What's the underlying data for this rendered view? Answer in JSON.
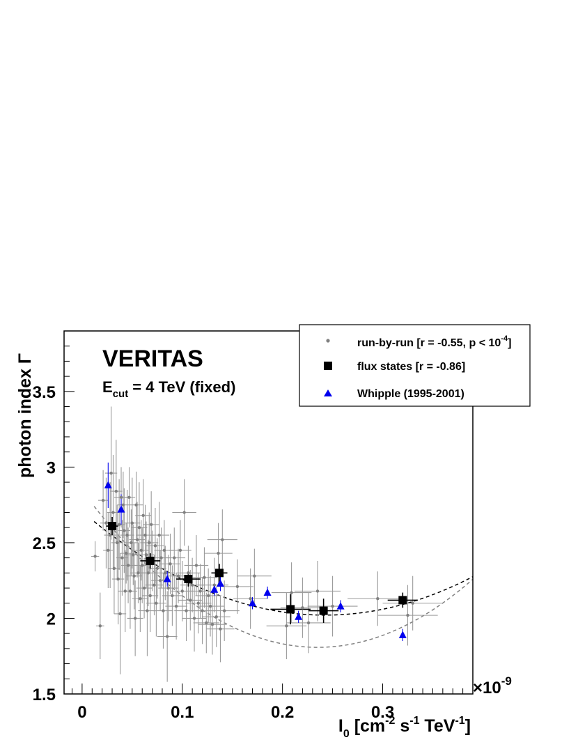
{
  "chart_data": {
    "type": "scatter",
    "title": "",
    "xlabel": {
      "main": "I",
      "sub": "0",
      "rest1": " [cm",
      "sup1": "-2",
      "rest2": " s",
      "sup2": "-1",
      "rest3": " TeV",
      "sup3": "-1",
      "rest4": "]"
    },
    "ylabel": "photon index  Γ",
    "x_multiplier": {
      "prefix": "×10",
      "exp": "-9"
    },
    "xlim": [
      -0.018,
      0.39
    ],
    "ylim": [
      1.5,
      3.9
    ],
    "x_ticks": [
      {
        "v": 0,
        "label": "0"
      },
      {
        "v": 0.1,
        "label": "0.1"
      },
      {
        "v": 0.2,
        "label": "0.2"
      },
      {
        "v": 0.3,
        "label": "0.3"
      }
    ],
    "y_ticks": [
      {
        "v": 1.5,
        "label": "1.5"
      },
      {
        "v": 2,
        "label": "2"
      },
      {
        "v": 2.5,
        "label": "2.5"
      },
      {
        "v": 3,
        "label": "3"
      },
      {
        "v": 3.5,
        "label": "3.5"
      }
    ],
    "annotations": {
      "experiment": "VERITAS",
      "ecut": {
        "main": "E",
        "sub": "cut",
        "rest": " = 4 TeV (fixed)"
      }
    },
    "legend": {
      "position": "top-right",
      "entries": [
        {
          "label": "run-by-run [r = -0.55, p < 10",
          "sup": "-4",
          "tail": "]",
          "marker": "dot",
          "color": "#808080"
        },
        {
          "label": "flux states [r = -0.86]",
          "marker": "square",
          "color": "#000000"
        },
        {
          "label": "Whipple (1995-2001)",
          "marker": "triangle",
          "color": "#0000ee"
        }
      ]
    },
    "series": [
      {
        "name": "run-by-run [r = -0.55, p < 10^-4]",
        "color": "#808080",
        "points": [
          [
            0.013,
            2.41,
            0.004,
            0.1
          ],
          [
            0.018,
            1.95,
            0.004,
            0.22
          ],
          [
            0.021,
            2.78,
            0.005,
            0.2
          ],
          [
            0.024,
            2.63,
            0.006,
            0.3
          ],
          [
            0.026,
            2.45,
            0.005,
            0.25
          ],
          [
            0.028,
            2.55,
            0.006,
            0.35
          ],
          [
            0.029,
            2.96,
            0.006,
            0.44
          ],
          [
            0.031,
            2.7,
            0.006,
            0.38
          ],
          [
            0.032,
            2.33,
            0.006,
            0.3
          ],
          [
            0.034,
            2.84,
            0.006,
            0.34
          ],
          [
            0.035,
            2.5,
            0.006,
            0.25
          ],
          [
            0.036,
            2.26,
            0.006,
            0.3
          ],
          [
            0.037,
            2.62,
            0.006,
            0.3
          ],
          [
            0.038,
            2.03,
            0.006,
            0.4
          ],
          [
            0.039,
            2.8,
            0.007,
            0.2
          ],
          [
            0.04,
            2.4,
            0.006,
            0.25
          ],
          [
            0.041,
            2.75,
            0.006,
            0.22
          ],
          [
            0.042,
            2.58,
            0.006,
            0.28
          ],
          [
            0.043,
            2.18,
            0.007,
            0.27
          ],
          [
            0.044,
            2.43,
            0.006,
            0.2
          ],
          [
            0.045,
            2.55,
            0.007,
            0.3
          ],
          [
            0.046,
            2.35,
            0.007,
            0.25
          ],
          [
            0.047,
            2.8,
            0.006,
            0.2
          ],
          [
            0.048,
            2.18,
            0.007,
            0.25
          ],
          [
            0.049,
            2.5,
            0.007,
            0.22
          ],
          [
            0.05,
            2.63,
            0.008,
            0.3
          ],
          [
            0.051,
            2.42,
            0.007,
            0.2
          ],
          [
            0.052,
            2.28,
            0.008,
            0.22
          ],
          [
            0.053,
            2.0,
            0.008,
            0.25
          ],
          [
            0.054,
            2.75,
            0.007,
            0.22
          ],
          [
            0.055,
            2.52,
            0.008,
            0.25
          ],
          [
            0.056,
            2.3,
            0.008,
            0.2
          ],
          [
            0.057,
            2.6,
            0.008,
            0.3
          ],
          [
            0.058,
            2.13,
            0.008,
            0.22
          ],
          [
            0.059,
            2.45,
            0.008,
            0.2
          ],
          [
            0.06,
            2.35,
            0.008,
            0.25
          ],
          [
            0.061,
            2.68,
            0.008,
            0.24
          ],
          [
            0.062,
            2.2,
            0.008,
            0.2
          ],
          [
            0.063,
            2.55,
            0.009,
            0.2
          ],
          [
            0.064,
            2.42,
            0.008,
            0.22
          ],
          [
            0.065,
            2.05,
            0.009,
            0.3
          ],
          [
            0.066,
            2.3,
            0.009,
            0.22
          ],
          [
            0.067,
            2.5,
            0.009,
            0.2
          ],
          [
            0.068,
            2.15,
            0.008,
            0.24
          ],
          [
            0.069,
            2.62,
            0.008,
            0.22
          ],
          [
            0.07,
            2.38,
            0.009,
            0.2
          ],
          [
            0.072,
            2.22,
            0.009,
            0.2
          ],
          [
            0.073,
            2.48,
            0.009,
            0.25
          ],
          [
            0.074,
            2.1,
            0.01,
            0.22
          ],
          [
            0.075,
            2.33,
            0.009,
            0.2
          ],
          [
            0.077,
            2.55,
            0.01,
            0.22
          ],
          [
            0.078,
            2.25,
            0.009,
            0.2
          ],
          [
            0.079,
            2.4,
            0.01,
            0.2
          ],
          [
            0.081,
            2.05,
            0.01,
            0.25
          ],
          [
            0.082,
            2.45,
            0.01,
            0.2
          ],
          [
            0.083,
            2.3,
            0.01,
            0.18
          ],
          [
            0.085,
            1.88,
            0.01,
            0.3
          ],
          [
            0.086,
            2.2,
            0.01,
            0.22
          ],
          [
            0.088,
            2.36,
            0.01,
            0.2
          ],
          [
            0.09,
            2.15,
            0.01,
            0.2
          ],
          [
            0.092,
            2.4,
            0.011,
            0.2
          ],
          [
            0.094,
            2.08,
            0.011,
            0.22
          ],
          [
            0.096,
            2.28,
            0.011,
            0.18
          ],
          [
            0.098,
            2.45,
            0.011,
            0.2
          ],
          [
            0.1,
            2.18,
            0.011,
            0.2
          ],
          [
            0.102,
            2.7,
            0.012,
            0.22
          ],
          [
            0.104,
            2.05,
            0.012,
            0.2
          ],
          [
            0.106,
            2.3,
            0.012,
            0.18
          ],
          [
            0.108,
            2.12,
            0.012,
            0.2
          ],
          [
            0.11,
            2.22,
            0.012,
            0.18
          ],
          [
            0.112,
            2.0,
            0.012,
            0.22
          ],
          [
            0.114,
            2.35,
            0.012,
            0.2
          ],
          [
            0.116,
            2.1,
            0.013,
            0.2
          ],
          [
            0.118,
            2.18,
            0.013,
            0.18
          ],
          [
            0.12,
            2.05,
            0.013,
            0.22
          ],
          [
            0.122,
            2.27,
            0.013,
            0.2
          ],
          [
            0.124,
            1.97,
            0.013,
            0.2
          ],
          [
            0.126,
            2.15,
            0.013,
            0.18
          ],
          [
            0.128,
            2.08,
            0.014,
            0.2
          ],
          [
            0.13,
            1.96,
            0.014,
            0.2
          ],
          [
            0.132,
            2.22,
            0.014,
            0.18
          ],
          [
            0.134,
            2.01,
            0.014,
            0.2
          ],
          [
            0.136,
            2.43,
            0.014,
            0.2
          ],
          [
            0.138,
            1.93,
            0.014,
            0.22
          ],
          [
            0.14,
            2.52,
            0.015,
            0.2
          ],
          [
            0.142,
            2.05,
            0.015,
            0.2
          ],
          [
            0.155,
            2.21,
            0.016,
            0.18
          ],
          [
            0.168,
            2.13,
            0.017,
            0.2
          ],
          [
            0.172,
            2.28,
            0.017,
            0.18
          ],
          [
            0.204,
            1.95,
            0.02,
            0.22
          ],
          [
            0.209,
            2.17,
            0.02,
            0.2
          ],
          [
            0.22,
            2.07,
            0.022,
            0.2
          ],
          [
            0.226,
            1.97,
            0.022,
            0.2
          ],
          [
            0.235,
            2.18,
            0.023,
            0.2
          ],
          [
            0.25,
            2.08,
            0.025,
            0.2
          ],
          [
            0.295,
            2.13,
            0.03,
            0.18
          ],
          [
            0.325,
            2.02,
            0.03,
            0.2
          ],
          [
            0.33,
            2.1,
            0.03,
            0.18
          ]
        ]
      },
      {
        "name": "flux states [r = -0.86]",
        "color": "#000000",
        "points": [
          [
            0.03,
            2.61,
            0.006,
            0.06
          ],
          [
            0.068,
            2.38,
            0.01,
            0.05
          ],
          [
            0.106,
            2.26,
            0.012,
            0.05
          ],
          [
            0.137,
            2.3,
            0.008,
            0.06
          ],
          [
            0.208,
            2.06,
            0.02,
            0.1
          ],
          [
            0.241,
            2.05,
            0.015,
            0.08
          ],
          [
            0.32,
            2.12,
            0.015,
            0.05
          ]
        ]
      },
      {
        "name": "Whipple (1995-2001)",
        "color": "#0000ee",
        "points": [
          [
            0.026,
            2.88,
            0.0,
            0.15
          ],
          [
            0.039,
            2.72,
            0.0,
            0.1
          ],
          [
            0.085,
            2.26,
            0.0,
            0.05
          ],
          [
            0.132,
            2.19,
            0.0,
            0.04
          ],
          [
            0.138,
            2.23,
            0.0,
            0.05
          ],
          [
            0.17,
            2.1,
            0.0,
            0.04
          ],
          [
            0.185,
            2.17,
            0.0,
            0.04
          ],
          [
            0.216,
            2.01,
            0.0,
            0.04
          ],
          [
            0.258,
            2.08,
            0.0,
            0.04
          ],
          [
            0.32,
            1.89,
            0.0,
            0.04
          ]
        ]
      }
    ],
    "fits": [
      {
        "color": "#000000",
        "coeffs": [
          2.7063,
          -5.6522,
          11.66
        ],
        "xrange": [
          0.012,
          0.39
        ]
      },
      {
        "color": "#808080",
        "coeffs": [
          2.8437,
          -8.8125,
          18.75
        ],
        "xrange": [
          0.012,
          0.39
        ]
      }
    ]
  }
}
